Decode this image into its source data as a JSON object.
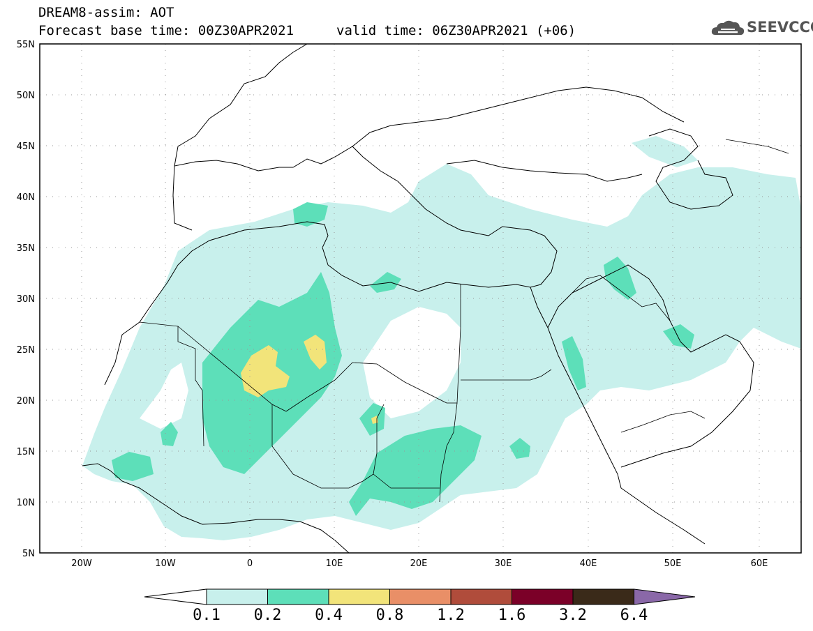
{
  "header": {
    "title_line1": "DREAM8-assim: AOT",
    "title_line2": "Forecast base time: 00Z30APR2021",
    "valid_time": "valid time: 06Z30APR2021 (+06)",
    "logo_text": "SEEVCCC"
  },
  "map": {
    "lat_labels": [
      "55N",
      "50N",
      "45N",
      "40N",
      "35N",
      "30N",
      "25N",
      "20N",
      "15N",
      "10N",
      "5N"
    ],
    "lon_labels": [
      "20W",
      "10W",
      "0",
      "10E",
      "20E",
      "30E",
      "40E",
      "50E",
      "60E"
    ],
    "colors": {
      "level_01": "#c8f0ec",
      "level_02": "#5ddfb9",
      "level_04": "#f2e47a"
    }
  },
  "colorbar": {
    "labels": [
      "0.1",
      "0.2",
      "0.4",
      "0.8",
      "1.2",
      "1.6",
      "3.2",
      "6.4"
    ],
    "colors": [
      "#c8f0ec",
      "#5ddfb9",
      "#f2e47a",
      "#e98f67",
      "#b04c3b",
      "#7b0028",
      "#3a2a19",
      "#8a68a8"
    ]
  }
}
